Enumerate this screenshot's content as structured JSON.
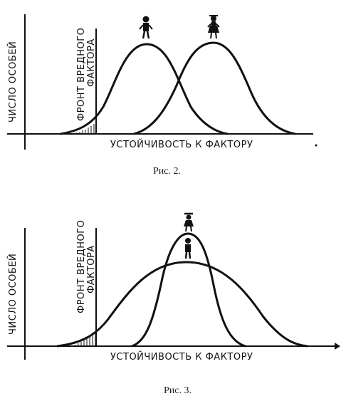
{
  "fig2": {
    "caption": "Рис. 2.",
    "ylabel": "ЧИСЛО ОСОБЕЙ",
    "front_label_line1": "ФРОНТ ВРЕДНОГО",
    "front_label_line2": "ФАКТОРА",
    "xlabel": "УСТОЙЧИВОСТЬ К ФАКТОРУ"
  },
  "fig3": {
    "caption": "Рис. 3.",
    "ylabel": "ЧИСЛО ОСОБЕЙ",
    "front_label_line1": "ФРОНТ ВРЕДНОГО",
    "front_label_line2": "ФАКТОРА",
    "xlabel": "УСТОЙЧИВОСТЬ К ФАКТОРУ"
  },
  "icons": [
    "male-figure-icon",
    "female-figure-icon"
  ],
  "colors": {
    "ink": "#111111"
  }
}
